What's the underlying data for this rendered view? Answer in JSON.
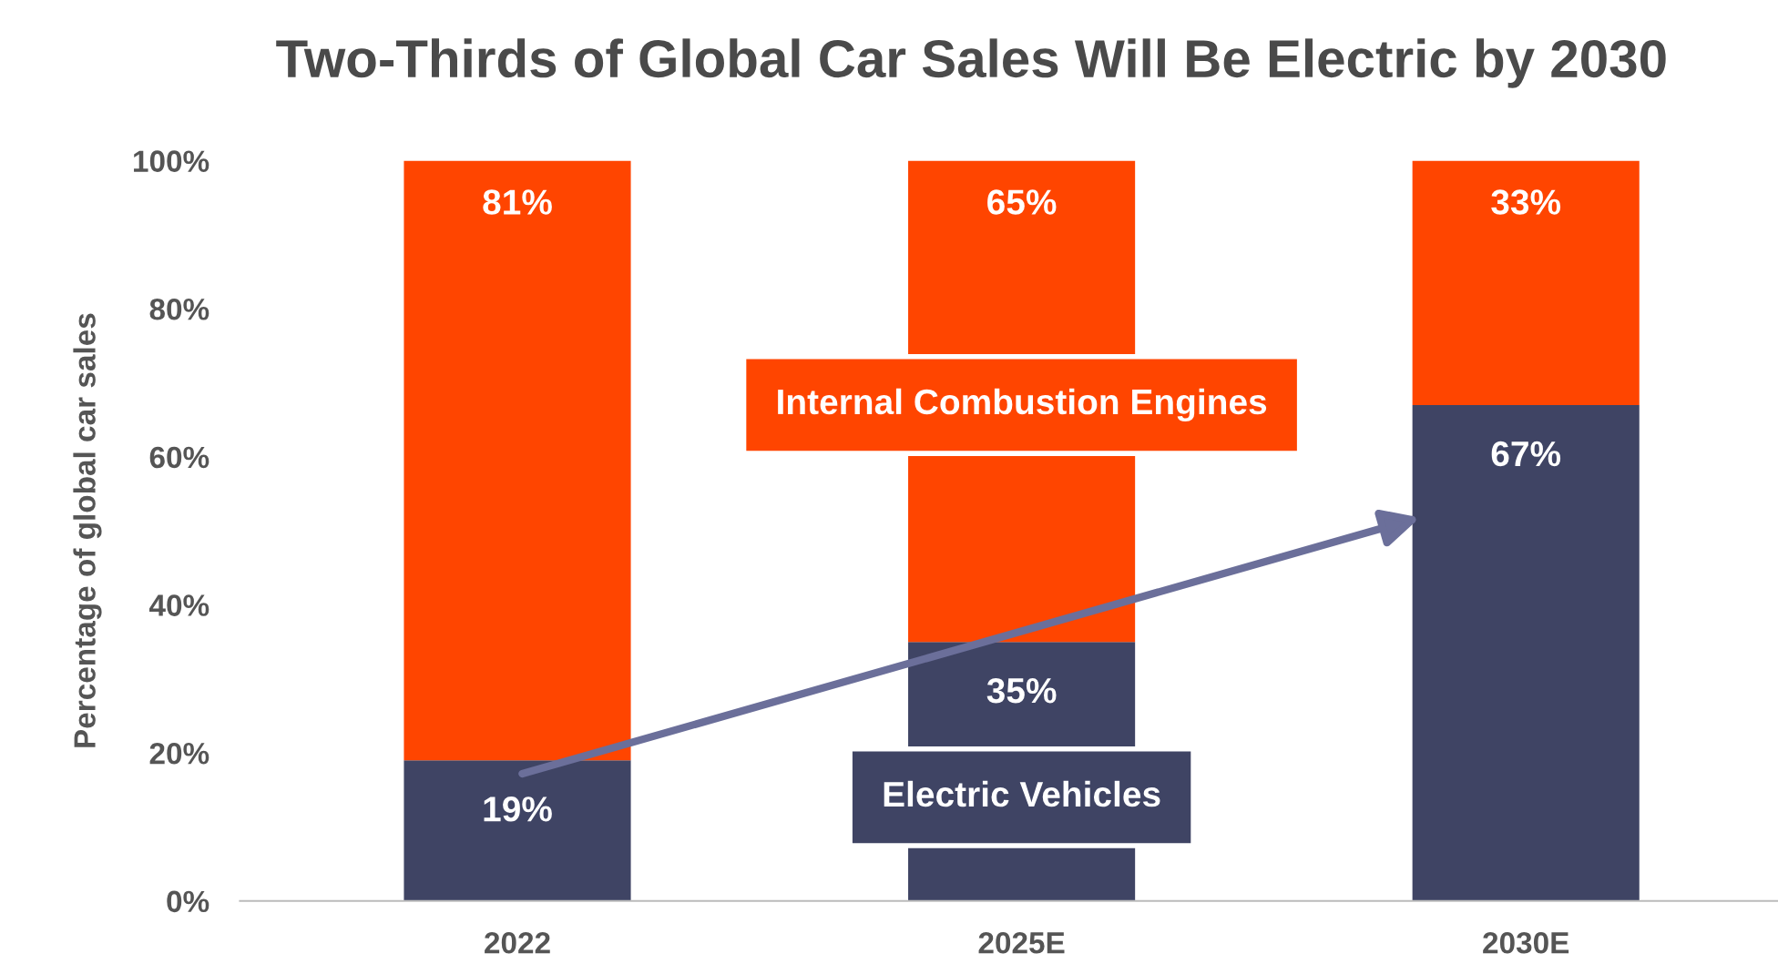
{
  "chart_data": {
    "type": "bar",
    "title": "Two-Thirds of Global Car Sales Will Be Electric by 2030",
    "ylabel": "Percentage of global car sales",
    "categories": [
      "2022",
      "2025E",
      "2030E"
    ],
    "stacked": true,
    "series": [
      {
        "name": "Electric Vehicles",
        "color": "#3f4464",
        "values": [
          19,
          35,
          67
        ]
      },
      {
        "name": "Internal Combustion Engines",
        "color": "#ff4500",
        "values": [
          81,
          65,
          33
        ]
      }
    ],
    "value_labels": [
      [
        "19%",
        "35%",
        "67%"
      ],
      [
        "81%",
        "65%",
        "33%"
      ]
    ],
    "ylim": [
      0,
      100
    ],
    "yticks": [
      {
        "value": 0,
        "label": "0%"
      },
      {
        "value": 20,
        "label": "20%"
      },
      {
        "value": 40,
        "label": "40%"
      },
      {
        "value": 60,
        "label": "60%"
      },
      {
        "value": 80,
        "label": "80%"
      },
      {
        "value": 100,
        "label": "100%"
      }
    ],
    "grid": false,
    "legend": "center"
  }
}
